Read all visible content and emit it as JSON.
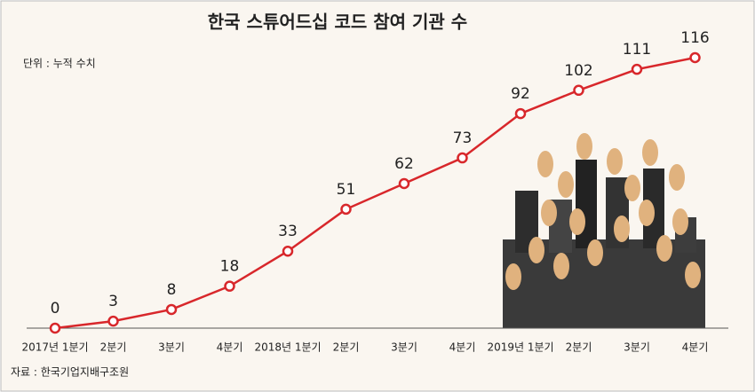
{
  "chart_data": {
    "type": "line",
    "title": "한국 스튜어드십 코드 참여 기관 수",
    "subtitle": "단위 : 누적 수치",
    "source": "자료 : 한국기업지배구조원",
    "categories": [
      "2017년 1분기",
      "2분기",
      "3분기",
      "4분기",
      "2018년 1분기",
      "2분기",
      "3분기",
      "4분기",
      "2019년 1분기",
      "2분기",
      "3분기",
      "4분기"
    ],
    "values": [
      0,
      3,
      8,
      18,
      33,
      51,
      62,
      73,
      92,
      102,
      111,
      116
    ],
    "color": "#d8272b"
  }
}
